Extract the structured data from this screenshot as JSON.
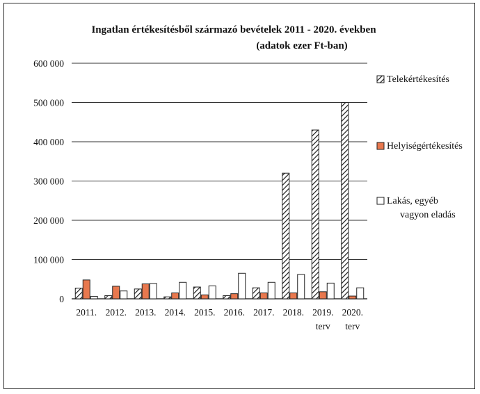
{
  "chart_data": {
    "type": "bar",
    "title": "Ingatlan értékesítésből származó bevételek 2011 - 2020. években",
    "subtitle": "(adatok ezer Ft-ban)",
    "categories": [
      "2011.",
      "2012.",
      "2013.",
      "2014.",
      "2015.",
      "2016.",
      "2017.",
      "2018.",
      "2019.",
      "2020."
    ],
    "category_sublabels": [
      "",
      "",
      "",
      "",
      "",
      "",
      "",
      "",
      "terv",
      "terv"
    ],
    "series": [
      {
        "name": "Telekértékesítés",
        "fill": "hatched",
        "values": [
          27000,
          8000,
          25000,
          5000,
          30000,
          8000,
          28000,
          320000,
          430000,
          500000
        ]
      },
      {
        "name": "Helyiségértékesítés",
        "fill": "#e8784e",
        "values": [
          48000,
          32000,
          38000,
          15000,
          10000,
          13000,
          15000,
          15000,
          18000,
          7000
        ]
      },
      {
        "name": "Lakás, egyéb vagyon eladás",
        "fill": "#ffffff",
        "values": [
          6000,
          20000,
          39000,
          42000,
          33000,
          65000,
          42000,
          62000,
          40000,
          28000
        ]
      }
    ],
    "ylim": [
      0,
      600000
    ],
    "yticks": [
      "0",
      "100 000",
      "200 000",
      "300 000",
      "400 000",
      "500 000",
      "600 000"
    ],
    "ytick_values": [
      0,
      100000,
      200000,
      300000,
      400000,
      500000,
      600000
    ],
    "grid": true,
    "legend_position": "right"
  }
}
